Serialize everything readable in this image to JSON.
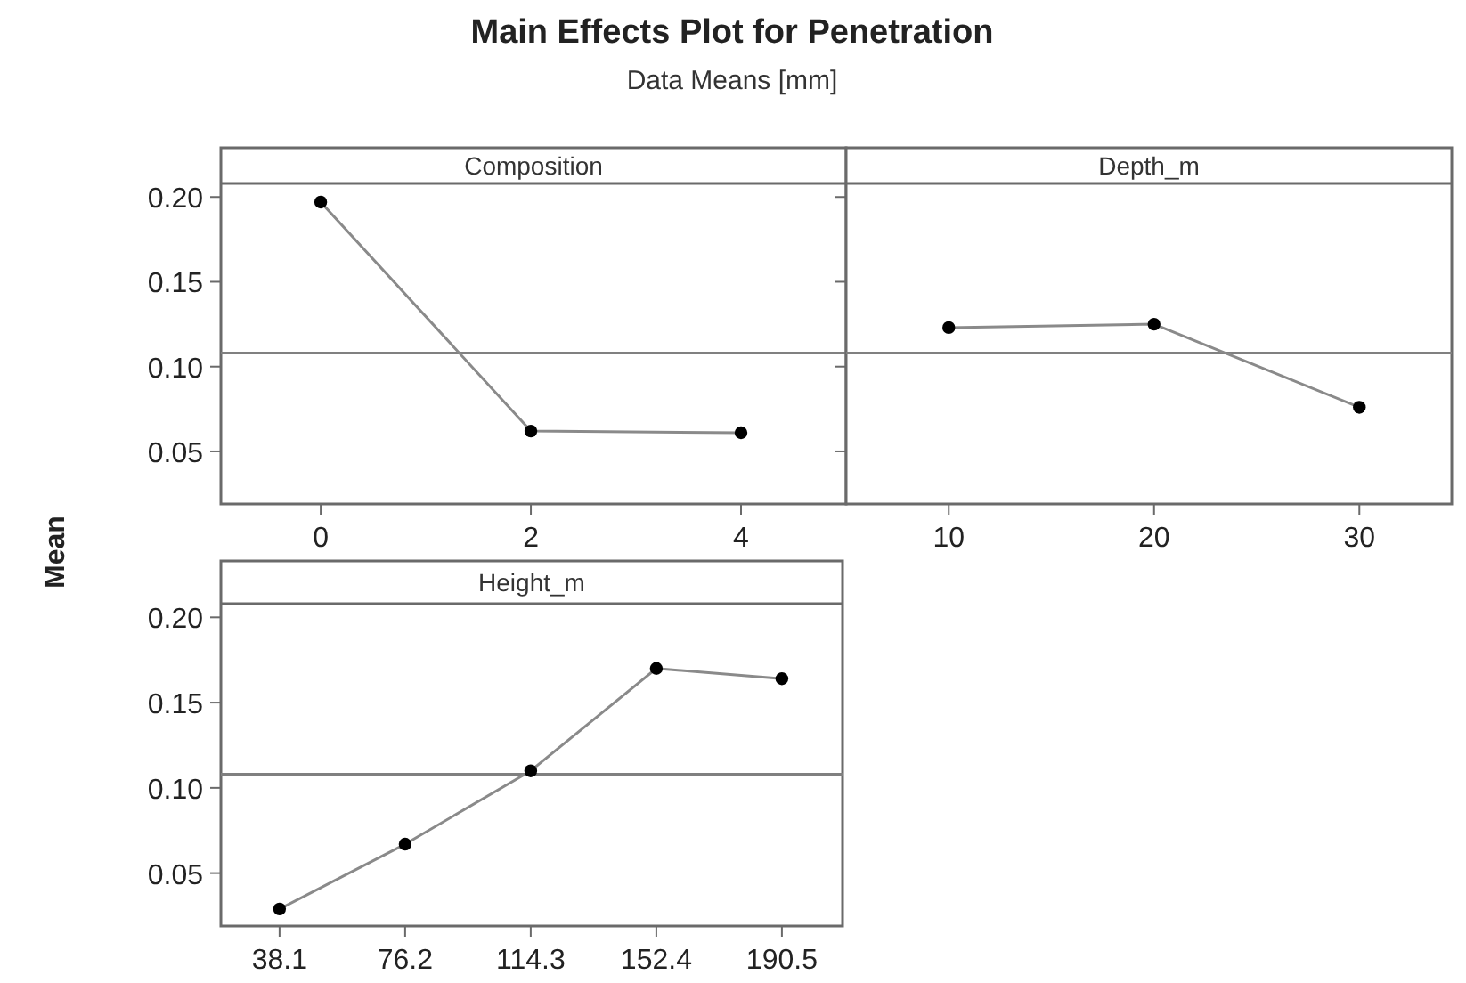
{
  "chart_data": [
    {
      "type": "line",
      "title": "Main Effects Plot for Penetration",
      "subtitle": "Data Means [mm]",
      "ylabel": "Mean",
      "xlabel": "Composition",
      "x": [
        0,
        2,
        4
      ],
      "series": [
        {
          "color": "#000000",
          "values": [
            0.197,
            0.062,
            0.061
          ]
        }
      ],
      "xlim": [
        -0.95,
        5.0
      ],
      "xticks": [
        0,
        2,
        4
      ],
      "ylim": [
        0.019,
        0.208
      ],
      "yticks": [
        {
          "value": 0.05,
          "label": "0.05"
        },
        {
          "value": 0.1,
          "label": "0.10"
        },
        {
          "value": 0.15,
          "label": "0.15"
        },
        {
          "value": 0.2,
          "label": "0.20"
        }
      ],
      "marker": "circle",
      "line_style": "solid",
      "ref_lines": [
        {
          "axis": "y",
          "value": 0.108,
          "color": "#808080"
        }
      ]
    },
    {
      "type": "line",
      "xlabel": "Depth_m",
      "x": [
        10,
        20,
        30
      ],
      "series": [
        {
          "color": "#000000",
          "values": [
            0.123,
            0.125,
            0.076
          ]
        }
      ],
      "xlim": [
        5,
        34.5
      ],
      "xticks": [
        10,
        20,
        30
      ],
      "ylim": [
        0.019,
        0.208
      ],
      "yticks": [
        {
          "value": 0.05,
          "label": null
        },
        {
          "value": 0.1,
          "label": null
        },
        {
          "value": 0.15,
          "label": null
        },
        {
          "value": 0.2,
          "label": null
        }
      ],
      "tick_labels": "x",
      "marker": "circle",
      "line_style": "solid",
      "ref_lines": [
        {
          "axis": "y",
          "value": 0.108,
          "color": "#808080"
        }
      ]
    },
    {
      "type": "line",
      "xlabel": "Height_m",
      "x": [
        38.1,
        76.2,
        114.3,
        152.4,
        190.5
      ],
      "series": [
        {
          "color": "#000000",
          "values": [
            0.029,
            0.067,
            0.11,
            0.17,
            0.164
          ]
        }
      ],
      "xlim": [
        20.3,
        208.9
      ],
      "xticks": [
        38.1,
        76.2,
        114.3,
        152.4,
        190.5
      ],
      "ylim": [
        0.019,
        0.208
      ],
      "yticks": [
        {
          "value": 0.05,
          "label": "0.05"
        },
        {
          "value": 0.1,
          "label": "0.10"
        },
        {
          "value": 0.15,
          "label": "0.15"
        },
        {
          "value": 0.2,
          "label": "0.20"
        }
      ],
      "marker": "circle",
      "line_style": "solid",
      "ref_lines": [
        {
          "axis": "y",
          "value": 0.108,
          "color": "#808080"
        }
      ]
    }
  ]
}
